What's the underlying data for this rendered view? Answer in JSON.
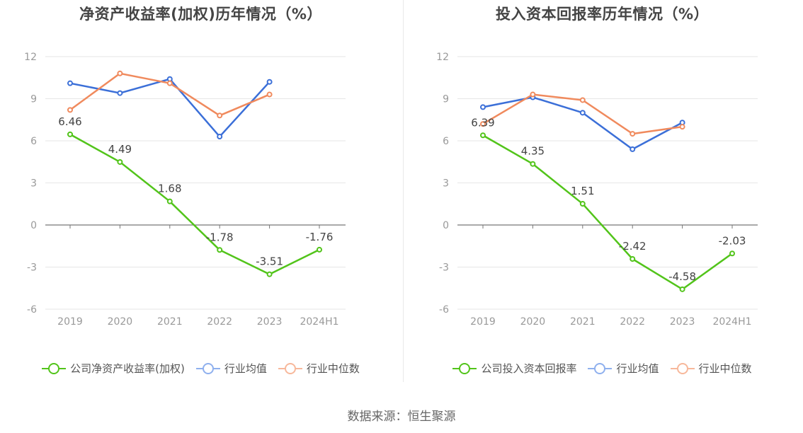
{
  "source": "数据来源：恒生聚源",
  "colors": {
    "company": "#52c41a",
    "avg": "#3b6fd8",
    "median": "#f08a5d",
    "grid": "#e6e6e6",
    "axis": "#777777",
    "label": "#999999"
  },
  "chart_data": [
    {
      "type": "line",
      "title": "净资产收益率(加权)历年情况（%）",
      "categories": [
        "2019",
        "2020",
        "2021",
        "2022",
        "2023",
        "2024H1"
      ],
      "ylim": [
        -6,
        12
      ],
      "yticks": [
        -6,
        -3,
        0,
        3,
        6,
        9,
        12
      ],
      "grid": true,
      "legend_position": "bottom",
      "series": [
        {
          "key": "company",
          "name": "公司净资产收益率(加权)",
          "values": [
            6.46,
            4.49,
            1.68,
            -1.78,
            -3.51,
            -1.76
          ],
          "labels": [
            "6.46",
            "4.49",
            "1.68",
            "-1.78",
            "-3.51",
            "-1.76"
          ]
        },
        {
          "key": "avg",
          "name": "行业均值",
          "values": [
            10.1,
            9.4,
            10.4,
            6.3,
            10.2,
            null
          ]
        },
        {
          "key": "median",
          "name": "行业中位数",
          "values": [
            8.2,
            10.8,
            10.1,
            7.8,
            9.3,
            null
          ]
        }
      ]
    },
    {
      "type": "line",
      "title": "投入资本回报率历年情况（%）",
      "categories": [
        "2019",
        "2020",
        "2021",
        "2022",
        "2023",
        "2024H1"
      ],
      "ylim": [
        -6,
        12
      ],
      "yticks": [
        -6,
        -3,
        0,
        3,
        6,
        9,
        12
      ],
      "grid": true,
      "legend_position": "bottom",
      "series": [
        {
          "key": "company",
          "name": "公司投入资本回报率",
          "values": [
            6.39,
            4.35,
            1.51,
            -2.42,
            -4.58,
            -2.03
          ],
          "labels": [
            "6.39",
            "4.35",
            "1.51",
            "-2.42",
            "-4.58",
            "-2.03"
          ]
        },
        {
          "key": "avg",
          "name": "行业均值",
          "values": [
            8.4,
            9.1,
            8.0,
            5.4,
            7.3,
            null
          ]
        },
        {
          "key": "median",
          "name": "行业中位数",
          "values": [
            7.2,
            9.3,
            8.9,
            6.5,
            7.0,
            null
          ]
        }
      ]
    }
  ]
}
